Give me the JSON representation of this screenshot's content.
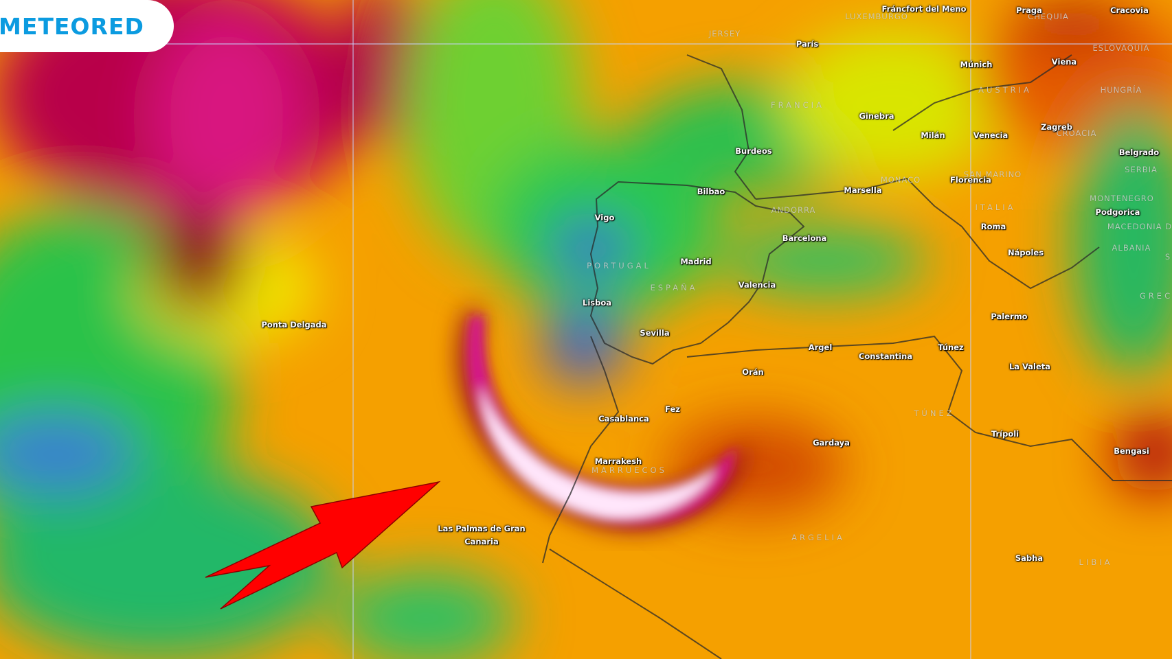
{
  "brand": {
    "logo_text": "METEORED",
    "color": "#0b9be0"
  },
  "map": {
    "type": "wind-speed forecast map",
    "palette": [
      "#2f5fd0",
      "#22c84a",
      "#f2ef00",
      "#f59a00",
      "#9c0018",
      "#d4157e",
      "#ffe6fb"
    ],
    "annotation": {
      "icon": "red-arrow-icon",
      "color": "#ff0000"
    },
    "cities": [
      "Fráncfort del Meno",
      "París",
      "Praga",
      "Cracovia",
      "Múnich",
      "Viena",
      "Ginebra",
      "Milán",
      "Venecia",
      "Zagreb",
      "Burdeos",
      "Belgrado",
      "Florencia",
      "Marsella",
      "Bilbao",
      "Podgorica",
      "Vigo",
      "Roma",
      "Barcelona",
      "Nápoles",
      "Madrid",
      "Valencia",
      "Lisboa",
      "Ponta Delgada",
      "Palermo",
      "Sevilla",
      "Argel",
      "Constantina",
      "Túnez",
      "Orán",
      "La Valeta",
      "Fez",
      "Casablanca",
      "Trípoli",
      "Gardaya",
      "Bengasi",
      "Marrakesh",
      "Las Palmas de Gran",
      "Canaria",
      "Sabha"
    ],
    "countries": [
      "LUXEMBURGO",
      "JERSEY",
      "CHEQUIA",
      "ESLOVAQUIA",
      "AUSTRIA",
      "HUNGRÍA",
      "FRANCIA",
      "CROACIA",
      "SERBIA",
      "MONACO",
      "SAN MARINO",
      "ANDORRA",
      "MONTENEGRO",
      "ITALIA",
      "MACEDONIA D",
      "ALBANIA",
      "S",
      "PORTUGAL",
      "ESPAÑA",
      "GREC",
      "TÚNEZ",
      "MARRUECOS",
      "ARGELIA",
      "LIBIA"
    ]
  }
}
